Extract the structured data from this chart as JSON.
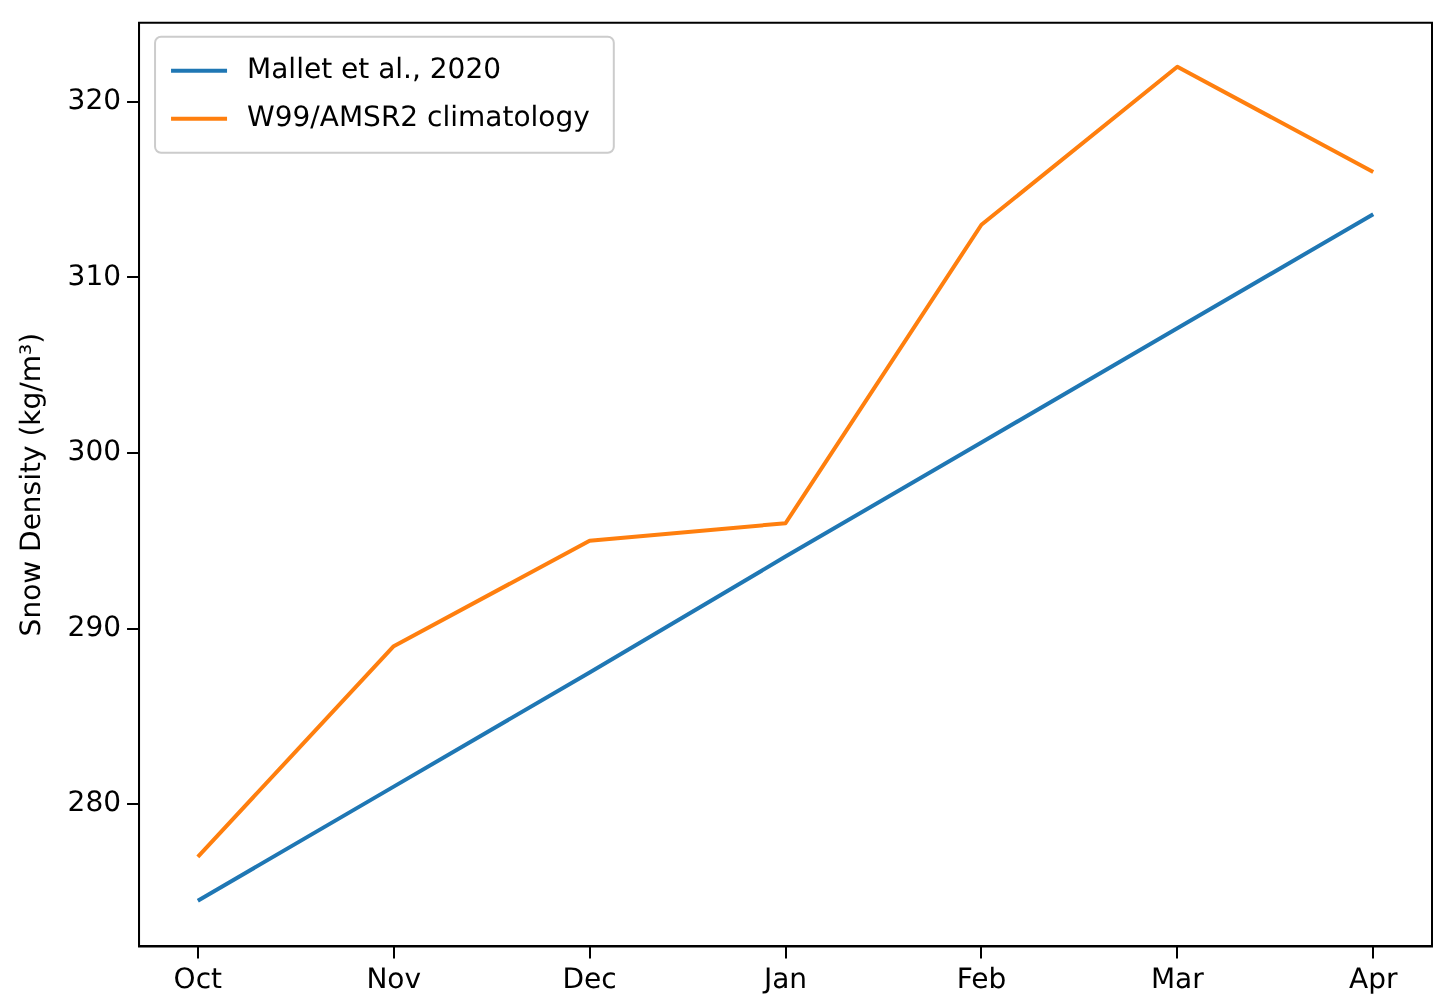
{
  "chart_data": {
    "type": "line",
    "ylabel": "Snow Density (kg/m³)",
    "categories": [
      "Oct",
      "Nov",
      "Dec",
      "Jan",
      "Feb",
      "Mar",
      "Apr"
    ],
    "series": [
      {
        "name": "Mallet et al., 2020",
        "color": "#1f77b4",
        "values": [
          274.5,
          281.0,
          287.5,
          294.1,
          300.6,
          307.1,
          313.6
        ]
      },
      {
        "name": "W99/AMSR2 climatology",
        "color": "#ff7f0e",
        "values": [
          277,
          289,
          295,
          296,
          313,
          322,
          316
        ]
      }
    ],
    "ylim": [
      271.9,
      324.5
    ],
    "yticks": [
      280,
      290,
      300,
      310,
      320
    ],
    "grid": false,
    "legend": "top left"
  }
}
